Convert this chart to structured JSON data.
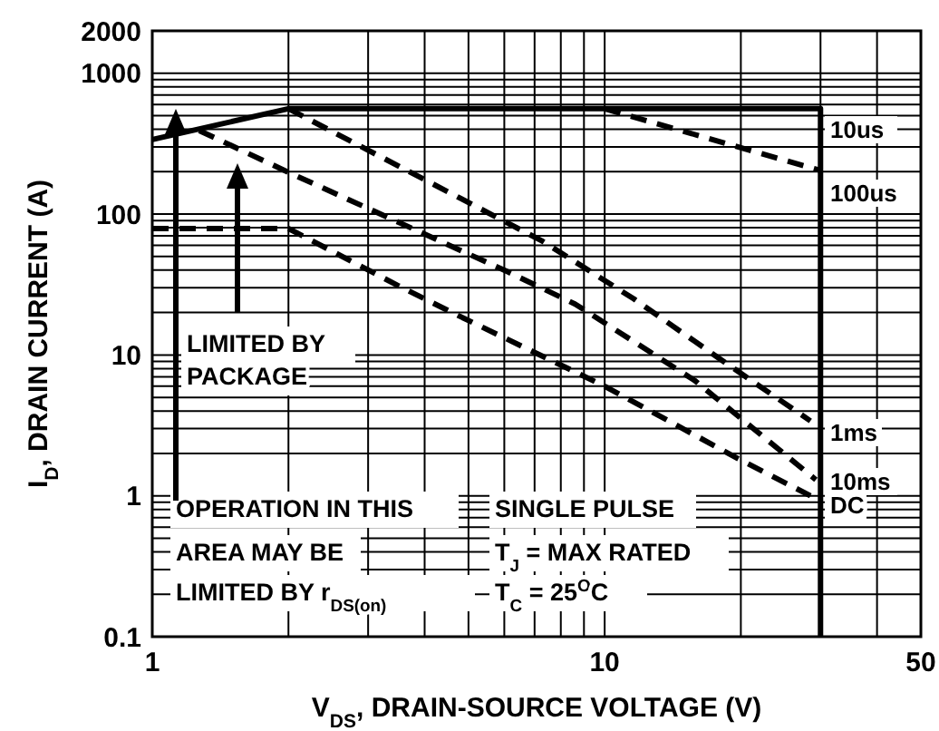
{
  "chart_data": {
    "type": "line",
    "xlabel": "V$_{DS}$, DRAIN-SOURCE VOLTAGE (V)",
    "ylabel": "I$_{D}$, DRAIN CURRENT (A)",
    "log": "xy",
    "xlim": [
      1,
      50
    ],
    "ylim": [
      0.1,
      2000
    ],
    "xticks": [
      1,
      10,
      50
    ],
    "yticks": [
      0.1,
      1,
      10,
      100,
      1000,
      2000
    ],
    "grid": true,
    "marker": "none",
    "series": [
      {
        "color": "#000000",
        "line_style": "solid",
        "x": [
          1,
          2,
          30,
          30
        ],
        "values": [
          338,
          560,
          560,
          0.1
        ]
      },
      {
        "color": "#000000",
        "line_style": "dashed",
        "x": [
          10,
          30
        ],
        "values": [
          560,
          204
        ]
      },
      {
        "color": "#000000",
        "line_style": "dashed",
        "x": [
          2,
          4.6,
          7.3,
          11.6,
          18.5,
          28.5
        ],
        "values": [
          560,
          139,
          64,
          25,
          8.8,
          3.4
        ]
      },
      {
        "color": "#000000",
        "line_style": "dashed",
        "x": [
          1.27,
          2,
          6.1,
          8.6,
          15.8,
          29.3
        ],
        "values": [
          392,
          198,
          39,
          23,
          6.6,
          1.3
        ]
      },
      {
        "color": "#000000",
        "line_style": "dashed",
        "x": [
          1,
          2,
          3.5,
          4.6,
          10,
          19.7,
          28.5
        ],
        "values": [
          79,
          79,
          31,
          20,
          6,
          1.84,
          1.0
        ]
      }
    ],
    "annotations": [
      "LIMITED BY",
      "PACKAGE",
      "OPERATION IN THIS",
      "AREA MAY BE",
      "LIMITED BY r$_{DS(on)}$",
      "SINGLE PULSE",
      "T$_{J}$ = MAX RATED",
      "T$_{C}$ = 25$^{O}$C",
      "10us",
      "100us",
      "1ms",
      "10ms",
      "DC"
    ]
  }
}
